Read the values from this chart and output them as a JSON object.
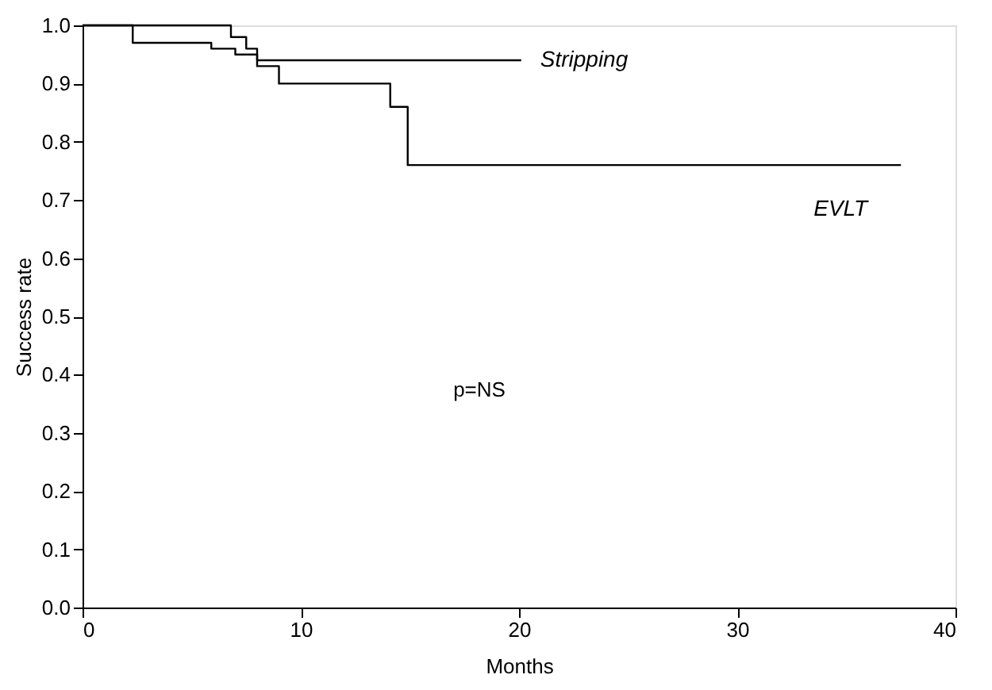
{
  "chart_data": {
    "type": "step",
    "xlabel": "Months",
    "ylabel": "Success rate",
    "xlim": [
      0,
      40
    ],
    "xticks": [
      0,
      10,
      20,
      30,
      40
    ],
    "ylim": [
      0,
      1.0
    ],
    "yticks": [
      {
        "value": 0,
        "label": "0.0"
      },
      {
        "value": 0.1,
        "label": "0.1"
      },
      {
        "value": 0.2,
        "label": "0.2"
      },
      {
        "value": 0.3,
        "label": "0.3"
      },
      {
        "value": 0.4,
        "label": "0.4"
      },
      {
        "value": 0.5,
        "label": "0.5"
      },
      {
        "value": 0.6,
        "label": "0.6"
      },
      {
        "value": 0.7,
        "label": "0.7"
      },
      {
        "value": 0.8,
        "label": "0.8"
      },
      {
        "value": 0.9,
        "label": "0.9"
      },
      {
        "value": 1,
        "label": "1.0"
      }
    ],
    "grid": false,
    "legend": false,
    "series": [
      {
        "name": "Stripping",
        "color": "#000000",
        "x": [
          0,
          6.8,
          7.5,
          8.0,
          20.1
        ],
        "values": [
          1.0,
          0.98,
          0.96,
          0.94,
          0.94
        ]
      },
      {
        "name": "EVLT",
        "color": "#000000",
        "x": [
          0,
          2.3,
          5.9,
          7.0,
          8.0,
          9.0,
          14.1,
          14.9,
          37.5
        ],
        "values": [
          1.0,
          0.97,
          0.96,
          0.95,
          0.93,
          0.9,
          0.86,
          0.76,
          0.76
        ]
      }
    ],
    "annotations": [
      "p=NS"
    ]
  }
}
